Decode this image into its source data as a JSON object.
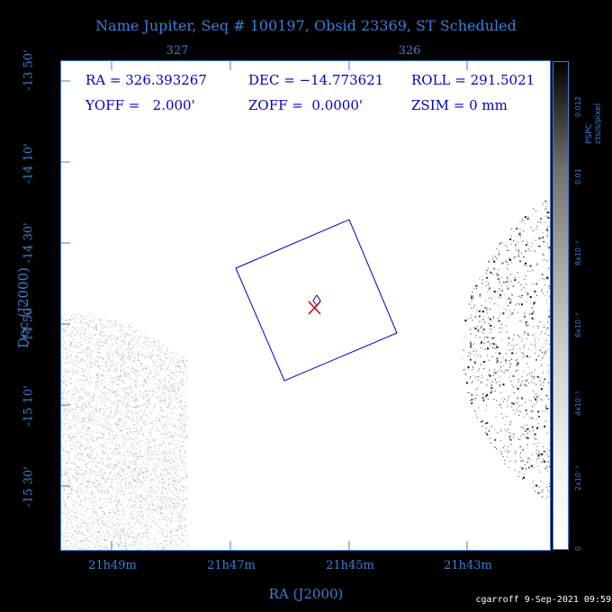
{
  "title": "Name Jupiter, Seq # 100197, Obsid 23369, ST Scheduled",
  "top_ticks": [
    "327",
    "326"
  ],
  "bottom_ticks": [
    "21h49m",
    "21h47m",
    "21h45m",
    "21h43m"
  ],
  "y_ticks": [
    "-13 50'",
    "-14 10'",
    "-14 30'",
    "-14 50'",
    "-15 10'",
    "-15 30'"
  ],
  "x_title": "RA (J2000)",
  "y_title": "Dec (J2000)",
  "info": {
    "ra": "RA = 326.393267",
    "dec": "DEC = −14.773621",
    "roll": "ROLL = 291.5021",
    "yoff": "YOFF =   2.000'",
    "zoff": "ZOFF =  0.0000'",
    "zsim": "ZSIM = 0 mm"
  },
  "colorbar": {
    "title": "PSPC cts/s/pixel",
    "labels": [
      "0.012",
      "0.01",
      "8x10⁻³",
      "6x10⁻³",
      "4x10⁻³",
      "2x10⁻³",
      "0"
    ]
  },
  "footer": "cgarroff  9-Sep-2021 09:59",
  "colors": {
    "axis": "#3c7fd6",
    "overlay": "#0000cc",
    "target": "#cc0000"
  }
}
